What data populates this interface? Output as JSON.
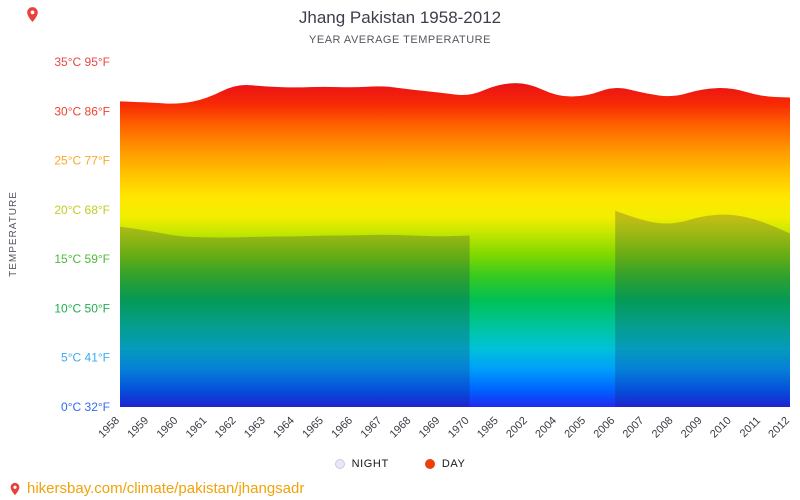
{
  "chart_data": {
    "type": "area",
    "title": "Jhang Pakistan 1958-2012",
    "subtitle": "YEAR AVERAGE TEMPERATURE",
    "ylabel": "TEMPERATURE",
    "xlabel": "",
    "ylim": [
      0,
      35
    ],
    "grid": false,
    "legend_position": "bottom",
    "categories": [
      "1958",
      "1959",
      "1960",
      "1961",
      "1962",
      "1963",
      "1964",
      "1965",
      "1966",
      "1967",
      "1968",
      "1969",
      "1970",
      "1985",
      "2002",
      "2004",
      "2005",
      "2006",
      "2007",
      "2008",
      "2009",
      "2010",
      "2011",
      "2012"
    ],
    "series": [
      {
        "name": "DAY",
        "color": "#fa3b00",
        "values": [
          31.0,
          30.9,
          30.7,
          31.3,
          32.8,
          32.5,
          32.4,
          32.5,
          32.4,
          32.6,
          32.2,
          31.9,
          31.5,
          32.8,
          32.9,
          31.5,
          31.5,
          32.6,
          31.8,
          31.4,
          32.3,
          32.4,
          31.5,
          31.4
        ]
      },
      {
        "name": "NIGHT",
        "color": "#eae6f7",
        "values": [
          18.3,
          17.9,
          17.3,
          17.2,
          17.2,
          17.3,
          17.3,
          17.4,
          17.4,
          17.5,
          17.4,
          17.3,
          17.4,
          null,
          null,
          null,
          null,
          19.9,
          18.8,
          18.5,
          19.4,
          19.6,
          18.9,
          17.6
        ]
      }
    ],
    "y_ticks": [
      {
        "label": "35°C 95°F",
        "value": 35,
        "color": "#e94743"
      },
      {
        "label": "30°C 86°F",
        "value": 30,
        "color": "#ef432e"
      },
      {
        "label": "25°C 77°F",
        "value": 25,
        "color": "#f9a825"
      },
      {
        "label": "20°C 68°F",
        "value": 20,
        "color": "#c3cc26"
      },
      {
        "label": "15°C 59°F",
        "value": 15,
        "color": "#4cba38"
      },
      {
        "label": "10°C 50°F",
        "value": 10,
        "color": "#1fae52"
      },
      {
        "label": "5°C 41°F",
        "value": 5,
        "color": "#3fa9f5"
      },
      {
        "label": "0°C 32°F",
        "value": 0,
        "color": "#2f6df2"
      }
    ],
    "gradient_stops": [
      {
        "at": 0.0,
        "color": "#cc0022"
      },
      {
        "at": 0.06,
        "color": "#e81118"
      },
      {
        "at": 0.12,
        "color": "#f72805"
      },
      {
        "at": 0.18,
        "color": "#ff5f00"
      },
      {
        "at": 0.25,
        "color": "#ff9400"
      },
      {
        "at": 0.32,
        "color": "#ffc000"
      },
      {
        "at": 0.39,
        "color": "#ffe600"
      },
      {
        "at": 0.45,
        "color": "#f2ee00"
      },
      {
        "at": 0.5,
        "color": "#c0e600"
      },
      {
        "at": 0.56,
        "color": "#7ed800"
      },
      {
        "at": 0.62,
        "color": "#38ca20"
      },
      {
        "at": 0.69,
        "color": "#00c055"
      },
      {
        "at": 0.76,
        "color": "#00c597"
      },
      {
        "at": 0.83,
        "color": "#00c2d8"
      },
      {
        "at": 0.89,
        "color": "#009ffa"
      },
      {
        "at": 0.95,
        "color": "#0063ff"
      },
      {
        "at": 1.0,
        "color": "#2029f0"
      }
    ]
  },
  "footer": {
    "link": "hikersbay.com/climate/pakistan/jhangsadr",
    "link_color": "#f0a30a"
  }
}
